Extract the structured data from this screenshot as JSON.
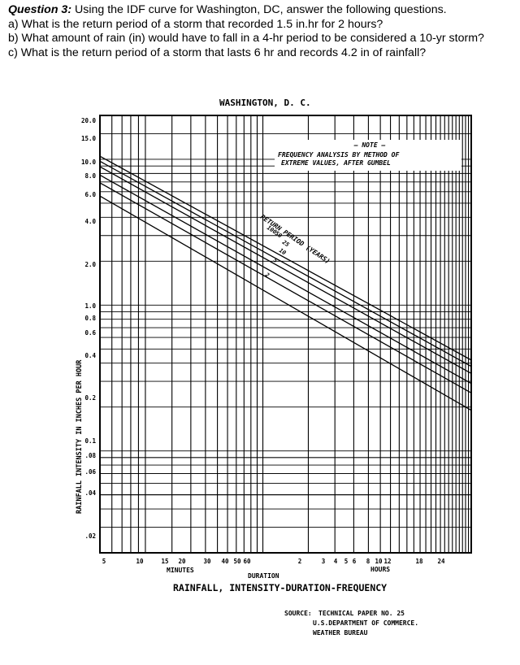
{
  "question": {
    "label": "Question 3:",
    "prompt": "Using the IDF curve for Washington, DC, answer the following questions.",
    "a": "a) What is the return period of a storm that recorded 1.5 in.hr for 2 hours?",
    "b": "b) What amount of rain (in) would have to fall in a 4-hr period to be considered a 10-yr storm?",
    "c": "c) What is the return period of a storm that lasts 6 hr and records 4.2 in of rainfall?"
  },
  "chart": {
    "title": "WASHINGTON, D. C.",
    "y_axis_label": "RAINFALL INTENSITY IN INCHES PER HOUR",
    "y_ticks": [
      "20.0",
      "15.0",
      "10.0",
      "8.0",
      "6.0",
      "4.0",
      "2.0",
      "1.0",
      "0.8",
      "0.6",
      "0.4",
      "0.2",
      "0.1",
      ".08",
      ".06",
      ".04",
      ".02"
    ],
    "x_ticks_minutes": [
      "5",
      "10",
      "15",
      "20",
      "30",
      "40",
      "50",
      "60"
    ],
    "x_ticks_hours": [
      "2",
      "3",
      "4",
      "5",
      "6",
      "8",
      "10",
      "12",
      "18",
      "24"
    ],
    "x_minutes_label": "MINUTES",
    "x_hours_label": "HOURS",
    "x_axis_label": "DURATION",
    "note_heading": "— NOTE —",
    "note_line1": "FREQUENCY ANALYSIS BY METHOD OF",
    "note_line2": "EXTREME VALUES, AFTER GUMBEL",
    "return_period_label": "RETURN PERIOD (YEARS)",
    "curve_labels": [
      "100",
      "50",
      "25",
      "10",
      "5",
      "2"
    ],
    "caption": "RAINFALL, INTENSITY-DURATION-FREQUENCY",
    "source_label": "SOURCE:",
    "source_line1": "TECHNICAL PAPER NO. 25",
    "source_line2": "U.S.DEPARTMENT OF COMMERCE.",
    "source_line3": "WEATHER BUREAU"
  },
  "chart_data": {
    "type": "line",
    "title": "WASHINGTON, D. C.",
    "xlabel": "DURATION",
    "ylabel": "RAINFALL INTENSITY IN INCHES PER HOUR",
    "x_scale": "log",
    "y_scale": "log",
    "xlim_minutes": [
      5,
      1440
    ],
    "ylim": [
      0.02,
      20.0
    ],
    "grid": true,
    "x_minutes": [
      5,
      1440
    ],
    "series": [
      {
        "name": "100",
        "values": [
          10.5,
          0.42
        ]
      },
      {
        "name": "50",
        "values": [
          9.7,
          0.38
        ]
      },
      {
        "name": "25",
        "values": [
          8.9,
          0.34
        ]
      },
      {
        "name": "10",
        "values": [
          7.8,
          0.29
        ]
      },
      {
        "name": "5",
        "values": [
          6.9,
          0.25
        ]
      },
      {
        "name": "2",
        "values": [
          5.6,
          0.19
        ]
      }
    ]
  }
}
